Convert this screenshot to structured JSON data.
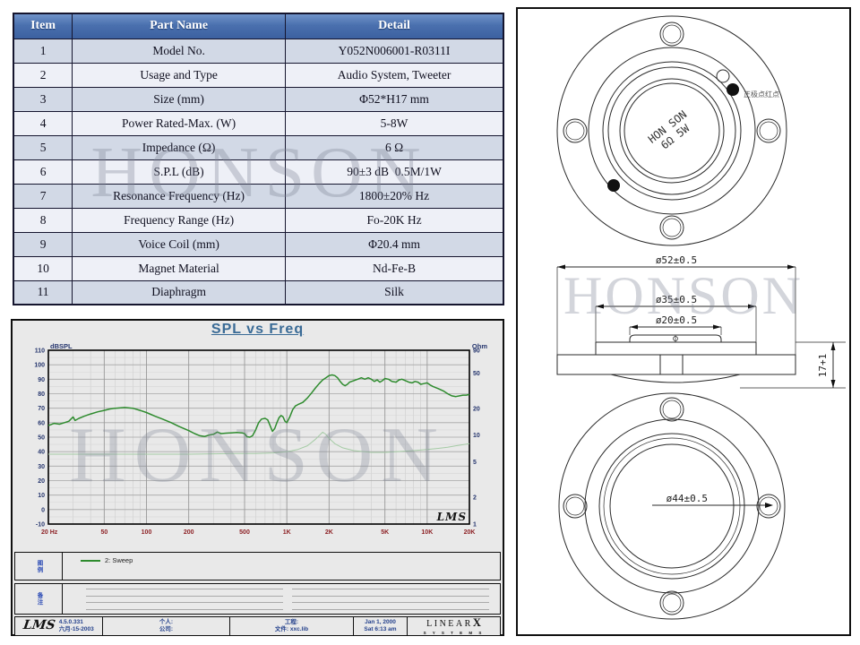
{
  "watermark": {
    "text": "HONSON"
  },
  "spec_table": {
    "headers": [
      "Item",
      "Part Name",
      "Detail"
    ],
    "rows": [
      [
        "1",
        "Model No.",
        "Y052N006001-R0311I"
      ],
      [
        "2",
        "Usage and Type",
        "Audio System, Tweeter"
      ],
      [
        "3",
        "Size (mm)",
        "Φ52*H17 mm"
      ],
      [
        "4",
        "Power Rated-Max. (W)",
        "5-8W"
      ],
      [
        "5",
        "Impedance (Ω)",
        "6 Ω"
      ],
      [
        "6",
        "S.P.L (dB)",
        "90±3 dB  0.5M/1W"
      ],
      [
        "7",
        "Resonance Frequency (Hz)",
        "1800±20% Hz"
      ],
      [
        "8",
        "Frequency Range (Hz)",
        "Fo-20K Hz"
      ],
      [
        "9",
        "Voice Coil (mm)",
        "Φ20.4 mm"
      ],
      [
        "10",
        "Magnet Material",
        "Nd-Fe-B"
      ],
      [
        "11",
        "Diaphragm",
        "Silk"
      ]
    ]
  },
  "chart": {
    "title": "SPL vs Freq",
    "left_axis_label": "dBSPL",
    "right_axis_label": "Ohm",
    "lms_plot_logo": "LMS",
    "legend": {
      "label": "2: Sweep",
      "color": "#2e8b2e",
      "side_label": "图例"
    },
    "notes_side_label": "备注",
    "footer": {
      "lms": "LMS",
      "version": "4.5.0.331",
      "version_date": "六月-15-2003",
      "person_label": "个人:",
      "company_label": "公司:",
      "project_label": "工程:",
      "file_label": "文件: xxc.lib",
      "date": "Jan 1, 2000",
      "time": "Sat 6:13 am",
      "brand": "LINEAR",
      "brand_x": "X",
      "brand_sub": "S Y S T E M S"
    }
  },
  "chart_data": {
    "type": "line",
    "title": "SPL vs Freq",
    "x_axis": {
      "scale": "log",
      "min": 20,
      "max": 20000,
      "ticks": [
        "20 Hz",
        "50",
        "100",
        "200",
        "500",
        "1K",
        "2K",
        "5K",
        "10K",
        "20K"
      ],
      "tick_values": [
        20,
        50,
        100,
        200,
        500,
        1000,
        2000,
        5000,
        10000,
        20000
      ]
    },
    "y_left": {
      "label": "dBSPL",
      "min": -10,
      "max": 110,
      "tick_step": 10
    },
    "y_right": {
      "label": "Ohm",
      "scale": "log",
      "min": 1,
      "max": 90,
      "ticks": [
        90,
        50,
        20,
        10,
        5,
        2,
        1
      ]
    },
    "grid": true,
    "legend_position": "bottom",
    "series": [
      {
        "name": "2: Sweep (SPL)",
        "axis": "left",
        "color": "#2e8b2e",
        "points": [
          [
            20,
            58
          ],
          [
            22,
            59.5
          ],
          [
            24,
            59
          ],
          [
            26,
            60
          ],
          [
            28,
            61
          ],
          [
            30,
            64
          ],
          [
            31,
            61.5
          ],
          [
            33,
            63
          ],
          [
            36,
            64.5
          ],
          [
            40,
            66
          ],
          [
            45,
            67.5
          ],
          [
            50,
            68.5
          ],
          [
            55,
            69.5
          ],
          [
            60,
            70
          ],
          [
            70,
            70.5
          ],
          [
            80,
            70
          ],
          [
            90,
            68.5
          ],
          [
            100,
            67
          ],
          [
            115,
            64.5
          ],
          [
            130,
            62.5
          ],
          [
            150,
            60
          ],
          [
            170,
            57.5
          ],
          [
            200,
            54.5
          ],
          [
            220,
            52.5
          ],
          [
            240,
            51
          ],
          [
            260,
            50.5
          ],
          [
            280,
            51.5
          ],
          [
            300,
            52
          ],
          [
            320,
            53.5
          ],
          [
            340,
            52.5
          ],
          [
            370,
            52.8
          ],
          [
            400,
            53
          ],
          [
            440,
            53.2
          ],
          [
            480,
            53
          ],
          [
            500,
            52.5
          ],
          [
            520,
            50.3
          ],
          [
            545,
            50
          ],
          [
            570,
            51
          ],
          [
            600,
            55
          ],
          [
            630,
            60
          ],
          [
            660,
            62.5
          ],
          [
            700,
            63
          ],
          [
            730,
            62
          ],
          [
            760,
            58
          ],
          [
            790,
            54
          ],
          [
            820,
            56
          ],
          [
            850,
            60
          ],
          [
            880,
            63.5
          ],
          [
            910,
            65
          ],
          [
            940,
            64
          ],
          [
            970,
            61
          ],
          [
            1000,
            60
          ],
          [
            1050,
            64
          ],
          [
            1100,
            69
          ],
          [
            1150,
            71.5
          ],
          [
            1200,
            72.5
          ],
          [
            1300,
            74
          ],
          [
            1400,
            77
          ],
          [
            1500,
            80.5
          ],
          [
            1600,
            84
          ],
          [
            1700,
            87
          ],
          [
            1800,
            89.5
          ],
          [
            1900,
            91
          ],
          [
            2000,
            92.5
          ],
          [
            2100,
            93
          ],
          [
            2200,
            92.5
          ],
          [
            2300,
            91
          ],
          [
            2400,
            88.5
          ],
          [
            2500,
            86.5
          ],
          [
            2600,
            85.5
          ],
          [
            2700,
            86.5
          ],
          [
            2800,
            88
          ],
          [
            3000,
            89
          ],
          [
            3200,
            90
          ],
          [
            3400,
            91
          ],
          [
            3600,
            90
          ],
          [
            3800,
            91
          ],
          [
            4000,
            90
          ],
          [
            4200,
            88.5
          ],
          [
            4400,
            89.5
          ],
          [
            4600,
            88
          ],
          [
            4800,
            89
          ],
          [
            5000,
            90.5
          ],
          [
            5300,
            90
          ],
          [
            5600,
            88.5
          ],
          [
            6000,
            88
          ],
          [
            6300,
            89.5
          ],
          [
            6600,
            90
          ],
          [
            7000,
            89
          ],
          [
            7400,
            88
          ],
          [
            7800,
            87.5
          ],
          [
            8200,
            88.5
          ],
          [
            8600,
            88
          ],
          [
            9000,
            86.5
          ],
          [
            9500,
            87
          ],
          [
            10000,
            87.5
          ],
          [
            10500,
            86
          ],
          [
            11000,
            85
          ],
          [
            12000,
            83.5
          ],
          [
            13000,
            82
          ],
          [
            14000,
            80
          ],
          [
            15000,
            78.5
          ],
          [
            16000,
            78
          ],
          [
            17000,
            78.5
          ],
          [
            18000,
            79
          ],
          [
            19000,
            79
          ],
          [
            20000,
            79.5
          ]
        ]
      },
      {
        "name": "Impedance",
        "axis": "right",
        "color": "#a5cba5",
        "points": [
          [
            20,
            6.1
          ],
          [
            50,
            6.1
          ],
          [
            100,
            6.1
          ],
          [
            200,
            6.1
          ],
          [
            400,
            6.2
          ],
          [
            600,
            6.2
          ],
          [
            800,
            6.3
          ],
          [
            1000,
            6.5
          ],
          [
            1200,
            6.9
          ],
          [
            1400,
            7.6
          ],
          [
            1600,
            9
          ],
          [
            1800,
            10.8
          ],
          [
            1900,
            10.2
          ],
          [
            2000,
            9.2
          ],
          [
            2200,
            8
          ],
          [
            2500,
            7.2
          ],
          [
            3000,
            6.7
          ],
          [
            4000,
            6.4
          ],
          [
            5000,
            6.4
          ],
          [
            6000,
            6.5
          ],
          [
            8000,
            6.7
          ],
          [
            10000,
            6.9
          ],
          [
            12000,
            7.1
          ],
          [
            14000,
            7.3
          ],
          [
            16000,
            7.6
          ],
          [
            18000,
            7.8
          ],
          [
            20000,
            8
          ]
        ]
      }
    ]
  },
  "drawings": {
    "front_label_line1": "HON SON",
    "front_label_line2": "6Ω 5W",
    "terminal_note": "正极点红点",
    "dim_outer": "ø52±0.5",
    "dim_mid": "ø35±0.5",
    "dim_inner": "ø20±0.5",
    "dim_height": "17+1",
    "dim_rear": "ø44±0.5"
  }
}
